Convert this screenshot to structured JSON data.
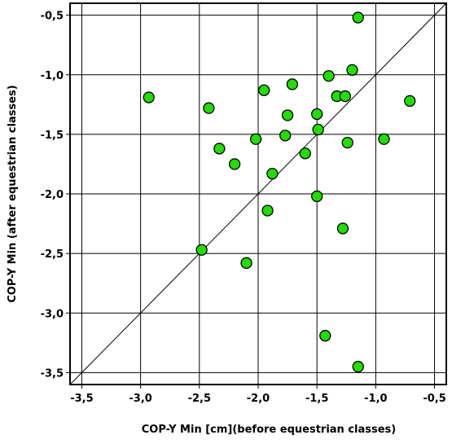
{
  "chart_data": {
    "type": "scatter",
    "xlabel": "COP-Y  Min [cm](before equestrian classes)",
    "ylabel": "COP-Y Min  (after equestrian classes)",
    "xlim": [
      -3.6,
      -0.4
    ],
    "ylim": [
      -3.6,
      -0.4
    ],
    "x_ticks": [
      -3.5,
      -3.0,
      -2.5,
      -2.0,
      -1.5,
      -1.0,
      -0.5
    ],
    "y_ticks": [
      -3.5,
      -3.0,
      -2.5,
      -2.0,
      -1.5,
      -1.0,
      -0.5
    ],
    "x_tick_labels": [
      "-3,5",
      "-3,0",
      "-2,5",
      "-2,0",
      "-1,5",
      "-1,0",
      "-0,5"
    ],
    "y_tick_labels": [
      "-3,5",
      "-3,0",
      "-2,5",
      "-2,0",
      "-1,5",
      "-1,0",
      "-0,5"
    ],
    "grid": true,
    "reference_line": {
      "type": "identity",
      "from": [
        -3.6,
        -3.6
      ],
      "to": [
        -0.4,
        -0.4
      ]
    },
    "marker_color": "#22dd00",
    "marker_edge_color": "#000000",
    "points": [
      {
        "x": -1.15,
        "y": -0.52
      },
      {
        "x": -1.2,
        "y": -0.96
      },
      {
        "x": -1.4,
        "y": -1.01
      },
      {
        "x": -1.71,
        "y": -1.08
      },
      {
        "x": -1.95,
        "y": -1.13
      },
      {
        "x": -2.93,
        "y": -1.19
      },
      {
        "x": -0.71,
        "y": -1.22
      },
      {
        "x": -1.33,
        "y": -1.18
      },
      {
        "x": -1.26,
        "y": -1.18
      },
      {
        "x": -2.42,
        "y": -1.28
      },
      {
        "x": -1.75,
        "y": -1.34
      },
      {
        "x": -1.5,
        "y": -1.33
      },
      {
        "x": -1.49,
        "y": -1.46
      },
      {
        "x": -2.02,
        "y": -1.54
      },
      {
        "x": -1.77,
        "y": -1.51
      },
      {
        "x": -0.93,
        "y": -1.54
      },
      {
        "x": -1.24,
        "y": -1.57
      },
      {
        "x": -2.33,
        "y": -1.62
      },
      {
        "x": -1.6,
        "y": -1.66
      },
      {
        "x": -2.2,
        "y": -1.75
      },
      {
        "x": -1.88,
        "y": -1.83
      },
      {
        "x": -1.5,
        "y": -2.02
      },
      {
        "x": -1.92,
        "y": -2.14
      },
      {
        "x": -1.28,
        "y": -2.29
      },
      {
        "x": -2.48,
        "y": -2.47
      },
      {
        "x": -2.1,
        "y": -2.58
      },
      {
        "x": -1.43,
        "y": -3.19
      },
      {
        "x": -1.15,
        "y": -3.45
      }
    ]
  }
}
